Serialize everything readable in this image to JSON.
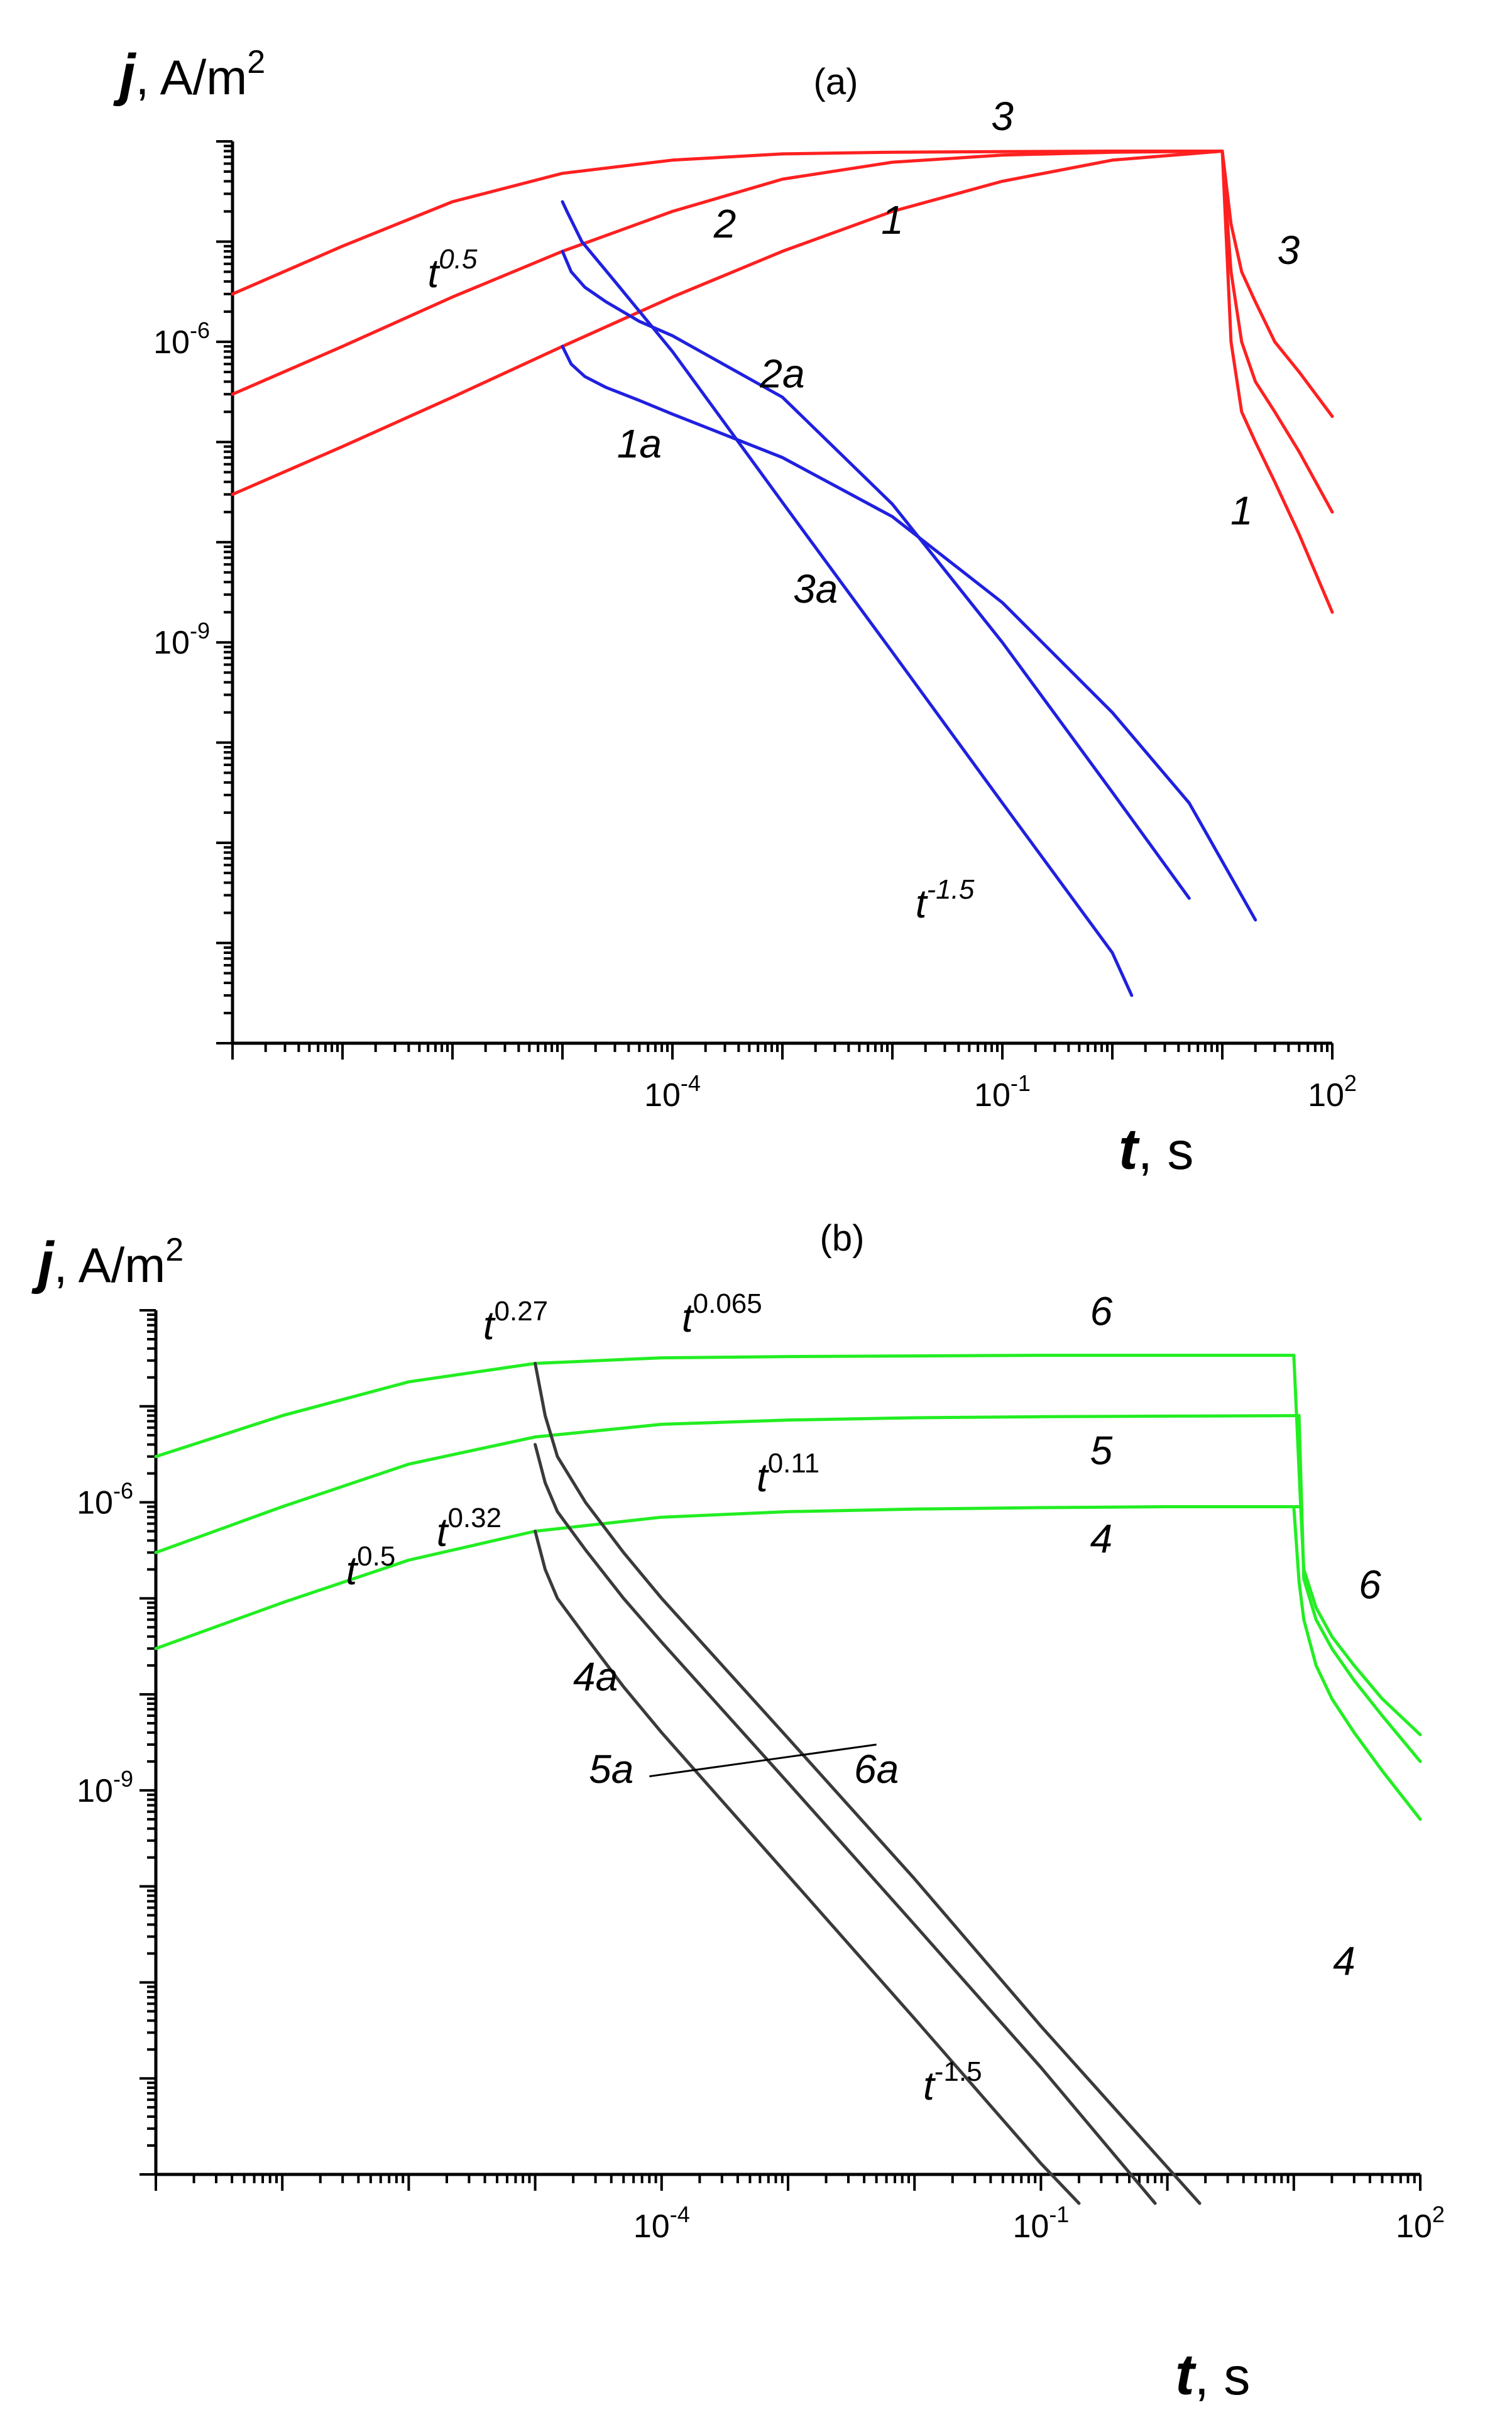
{
  "chart_data": [
    {
      "type": "line",
      "panel_label": "(a)",
      "ylabel": "j, A/m2",
      "ylabel_parts": {
        "var": "j",
        "unit": ", A/m",
        "sup": "2"
      },
      "xlabel": "t, s",
      "xlabel_parts": {
        "var": "t",
        "unit": ", s"
      },
      "x_scale": "log",
      "y_scale": "log",
      "xlim": [
        1e-08,
        100
      ],
      "ylim": [
        1e-13,
        0.0001
      ],
      "x_ticks": [
        {
          "base": "10",
          "exp": "-4",
          "value": 0.0001
        },
        {
          "base": "10",
          "exp": "-1",
          "value": 0.1
        },
        {
          "base": "10",
          "exp": "2",
          "value": 100
        }
      ],
      "y_ticks": [
        {
          "base": "10",
          "exp": "-6",
          "value": 1e-06
        },
        {
          "base": "10",
          "exp": "-9",
          "value": 1e-09
        }
      ],
      "colors": {
        "charging": "#ff2020",
        "discharging": "#2020e0"
      },
      "series": [
        {
          "name": "1",
          "group": "charging",
          "x": [
            1e-08,
            1e-07,
            1e-06,
            1e-05,
            0.0001,
            0.001,
            0.01,
            0.1,
            1,
            10
          ],
          "y": [
            3e-08,
            9e-08,
            2.8e-07,
            9e-07,
            2.8e-06,
            8e-06,
            2e-05,
            4e-05,
            6.5e-05,
            8e-05
          ]
        },
        {
          "name": "2",
          "group": "charging",
          "x": [
            1e-08,
            1e-07,
            1e-06,
            1e-05,
            0.0001,
            0.001,
            0.01,
            0.1,
            1,
            10
          ],
          "y": [
            3e-07,
            9e-07,
            2.8e-06,
            8e-06,
            2e-05,
            4.2e-05,
            6.2e-05,
            7.3e-05,
            7.8e-05,
            8e-05
          ]
        },
        {
          "name": "3",
          "group": "charging",
          "x": [
            1e-08,
            1e-07,
            1e-06,
            1e-05,
            0.0001,
            0.001,
            0.01,
            0.1,
            1,
            10
          ],
          "y": [
            3e-06,
            9e-06,
            2.5e-05,
            4.8e-05,
            6.5e-05,
            7.5e-05,
            7.8e-05,
            7.9e-05,
            8e-05,
            8e-05
          ]
        },
        {
          "name": "1 (decay)",
          "group": "charging",
          "x": [
            10,
            12,
            15,
            20,
            30,
            50,
            100
          ],
          "y": [
            8e-05,
            1e-06,
            2e-07,
            1e-07,
            4e-08,
            1.2e-08,
            2e-09
          ]
        },
        {
          "name": "2 (decay)",
          "group": "charging",
          "x": [
            10,
            12,
            15,
            20,
            30,
            50,
            100
          ],
          "y": [
            8e-05,
            5e-06,
            1e-06,
            4e-07,
            2e-07,
            8e-08,
            2e-08
          ]
        },
        {
          "name": "3 (decay)",
          "group": "charging",
          "x": [
            10,
            12,
            15,
            20,
            30,
            50,
            100
          ],
          "y": [
            8e-05,
            1.5e-05,
            5e-06,
            2.5e-06,
            1e-06,
            5e-07,
            1.8e-07
          ]
        },
        {
          "name": "1a",
          "group": "discharging",
          "x": [
            1e-05,
            1.2e-05,
            1.6e-05,
            2.5e-05,
            5e-05,
            0.0001,
            0.001,
            0.01,
            0.1,
            1,
            5,
            20
          ],
          "y": [
            9e-07,
            6e-07,
            4.5e-07,
            3.5e-07,
            2.6e-07,
            1.9e-07,
            7e-08,
            1.8e-08,
            2.5e-09,
            2e-10,
            2.5e-11,
            1.7e-12
          ]
        },
        {
          "name": "2a",
          "group": "discharging",
          "x": [
            1e-05,
            1.2e-05,
            1.6e-05,
            2.5e-05,
            5e-05,
            0.0001,
            0.001,
            0.01,
            0.1,
            1,
            5
          ],
          "y": [
            8e-06,
            5e-06,
            3.5e-06,
            2.5e-06,
            1.6e-06,
            1.15e-06,
            2.8e-07,
            2.4e-08,
            1e-09,
            3.2e-11,
            2.8e-12
          ]
        },
        {
          "name": "3a",
          "group": "discharging",
          "x": [
            1e-05,
            1.1e-05,
            1.5e-05,
            3e-05,
            0.0001,
            0.001,
            0.01,
            0.1,
            1,
            1.5
          ],
          "y": [
            2.5e-05,
            2e-05,
            1e-05,
            4e-06,
            8e-07,
            2.5e-08,
            8e-10,
            2.5e-11,
            8e-13,
            3e-13
          ]
        }
      ],
      "annotations": [
        {
          "id": "pow-a-05",
          "base": "t",
          "exp": "0.5",
          "x": 1e-06,
          "y": 3.5e-06
        },
        {
          "id": "pow-a-m15",
          "base": "t",
          "exp": "-1.5",
          "x": 0.03,
          "y": 1.8e-12
        },
        {
          "id": "lab-a-1",
          "text": "1",
          "x": 0.01,
          "y": 1.2e-05
        },
        {
          "id": "lab-a-2",
          "text": "2",
          "x": 0.0003,
          "y": 1.1e-05
        },
        {
          "id": "lab-a-3",
          "text": "3",
          "x": 0.1,
          "y": 0.00013
        },
        {
          "id": "lab-a-1a",
          "text": "1a",
          "x": 5e-05,
          "y": 7e-08
        },
        {
          "id": "lab-a-2a",
          "text": "2a",
          "x": 0.001,
          "y": 3.5e-07
        },
        {
          "id": "lab-a-3a",
          "text": "3a",
          "x": 0.002,
          "y": 2.5e-09
        },
        {
          "id": "lab-a-1r",
          "text": "1",
          "x": 15,
          "y": 1.5e-08
        },
        {
          "id": "lab-a-3r",
          "text": "3",
          "x": 40,
          "y": 6e-06
        }
      ]
    },
    {
      "type": "line",
      "panel_label": "(b)",
      "ylabel": "j, A/m2",
      "ylabel_parts": {
        "var": "j",
        "unit": ", A/m",
        "sup": "2"
      },
      "xlabel": "t, s",
      "xlabel_parts": {
        "var": "t",
        "unit": ", s"
      },
      "x_scale": "log",
      "y_scale": "log",
      "xlim": [
        1e-08,
        100
      ],
      "ylim": [
        1e-13,
        0.0001
      ],
      "x_ticks": [
        {
          "base": "10",
          "exp": "-4",
          "value": 0.0001
        },
        {
          "base": "10",
          "exp": "-1",
          "value": 0.1
        },
        {
          "base": "10",
          "exp": "2",
          "value": 100
        }
      ],
      "y_ticks": [
        {
          "base": "10",
          "exp": "-6",
          "value": 1e-06
        },
        {
          "base": "10",
          "exp": "-9",
          "value": 1e-09
        }
      ],
      "colors": {
        "charging": "#22ee22",
        "discharging": "#3a3a3a"
      },
      "series": [
        {
          "name": "4",
          "group": "charging",
          "x": [
            1e-08,
            1e-07,
            1e-06,
            1e-05,
            0.0001,
            0.001,
            0.01,
            0.1,
            1,
            10,
            11
          ],
          "y": [
            3e-08,
            9e-08,
            2.5e-07,
            5e-07,
            7e-07,
            8e-07,
            8.5e-07,
            8.8e-07,
            9e-07,
            9e-07,
            9e-07
          ]
        },
        {
          "name": "5",
          "group": "charging",
          "x": [
            1e-08,
            1e-07,
            1e-06,
            1e-05,
            0.0001,
            0.001,
            0.01,
            0.1,
            1,
            10,
            11
          ],
          "y": [
            3e-07,
            9e-07,
            2.5e-06,
            4.8e-06,
            6.5e-06,
            7.2e-06,
            7.6e-06,
            7.8e-06,
            7.9e-06,
            8e-06,
            8e-06
          ]
        },
        {
          "name": "6",
          "group": "charging",
          "x": [
            1e-08,
            1e-07,
            1e-06,
            1e-05,
            0.0001,
            0.001,
            0.01,
            0.1,
            1,
            10
          ],
          "y": [
            3e-06,
            8e-06,
            1.8e-05,
            2.8e-05,
            3.2e-05,
            3.3e-05,
            3.35e-05,
            3.4e-05,
            3.4e-05,
            3.4e-05
          ]
        },
        {
          "name": "4 (decay)",
          "group": "charging",
          "x": [
            10,
            11,
            12,
            15,
            20,
            30,
            50,
            100
          ],
          "y": [
            9e-07,
            1.5e-07,
            6e-08,
            2e-08,
            9e-09,
            4e-09,
            1.6e-09,
            5e-10
          ]
        },
        {
          "name": "5 (decay)",
          "group": "charging",
          "x": [
            11,
            12,
            15,
            20,
            30,
            50,
            100
          ],
          "y": [
            8e-06,
            1.6e-07,
            6e-08,
            3e-08,
            1.4e-08,
            6e-09,
            2e-09
          ]
        },
        {
          "name": "6 (decay)",
          "group": "charging",
          "x": [
            10,
            11.5,
            12,
            15,
            20,
            30,
            50,
            100
          ],
          "y": [
            3.4e-05,
            6e-07,
            2e-07,
            8e-08,
            4e-08,
            2e-08,
            9e-09,
            3.8e-09
          ]
        },
        {
          "name": "4a",
          "group": "discharging",
          "x": [
            1e-05,
            1.2e-05,
            1.5e-05,
            2.5e-05,
            5e-05,
            0.0001,
            0.001,
            0.01,
            0.1,
            0.2
          ],
          "y": [
            5e-07,
            2e-07,
            1e-07,
            4e-08,
            1.2e-08,
            4e-09,
            1.3e-10,
            4.2e-12,
            1.3e-13,
            5e-14
          ]
        },
        {
          "name": "5a",
          "group": "discharging",
          "x": [
            1e-05,
            1.2e-05,
            1.5e-05,
            2.5e-05,
            5e-05,
            0.0001,
            0.001,
            0.01,
            0.1,
            0.8
          ],
          "y": [
            4e-06,
            1.6e-06,
            8e-07,
            3.2e-07,
            1e-07,
            3.5e-08,
            1.2e-09,
            4e-11,
            1.3e-12,
            5e-14
          ]
        },
        {
          "name": "6a",
          "group": "discharging",
          "x": [
            1e-05,
            1.2e-05,
            1.5e-05,
            2.5e-05,
            5e-05,
            0.0001,
            0.001,
            0.01,
            0.1,
            1.8
          ],
          "y": [
            2.8e-05,
            8e-06,
            3e-06,
            1e-06,
            3e-07,
            1e-07,
            3.5e-09,
            1.2e-10,
            3.5e-12,
            5e-14
          ]
        }
      ],
      "annotations": [
        {
          "id": "pow-b-05",
          "base": "t",
          "exp": "0.5",
          "x": 5e-07,
          "y": 1.4e-07
        },
        {
          "id": "pow-b-032",
          "base": "t",
          "exp": "0.32",
          "x": 3e-06,
          "y": 3.5e-07
        },
        {
          "id": "pow-b-027",
          "base": "t",
          "exp": "0.27",
          "x": 7e-06,
          "y": 5e-05
        },
        {
          "id": "pow-b-0065",
          "base": "t",
          "exp": "0.065",
          "x": 0.0003,
          "y": 6e-05
        },
        {
          "id": "pow-b-011",
          "base": "t",
          "exp": "0.11",
          "x": 0.001,
          "y": 1.3e-06
        },
        {
          "id": "pow-b-m15",
          "base": "t",
          "exp": "-1.5",
          "x": 0.02,
          "y": 6e-13
        },
        {
          "id": "lab-b-4",
          "text": "4",
          "x": 0.3,
          "y": 3e-07
        },
        {
          "id": "lab-b-5",
          "text": "5",
          "x": 0.3,
          "y": 2.5e-06
        },
        {
          "id": "lab-b-6",
          "text": "6",
          "x": 0.3,
          "y": 7e-05
        },
        {
          "id": "lab-b-4a",
          "text": "4a",
          "x": 3e-05,
          "y": 1.1e-08
        },
        {
          "id": "lab-b-5a",
          "text": "5a",
          "x": 4e-05,
          "y": 1.2e-09
        },
        {
          "id": "lab-b-6a",
          "text": "6a",
          "x": 0.005,
          "y": 1.2e-09
        },
        {
          "id": "lab-b-4r",
          "text": "4",
          "x": 25,
          "y": 1.2e-11
        },
        {
          "id": "lab-b-6r",
          "text": "6",
          "x": 40,
          "y": 1e-07
        }
      ],
      "pointer": {
        "from": [
          8e-05,
          1.4e-09
        ],
        "to": [
          0.005,
          3e-09
        ]
      }
    }
  ]
}
